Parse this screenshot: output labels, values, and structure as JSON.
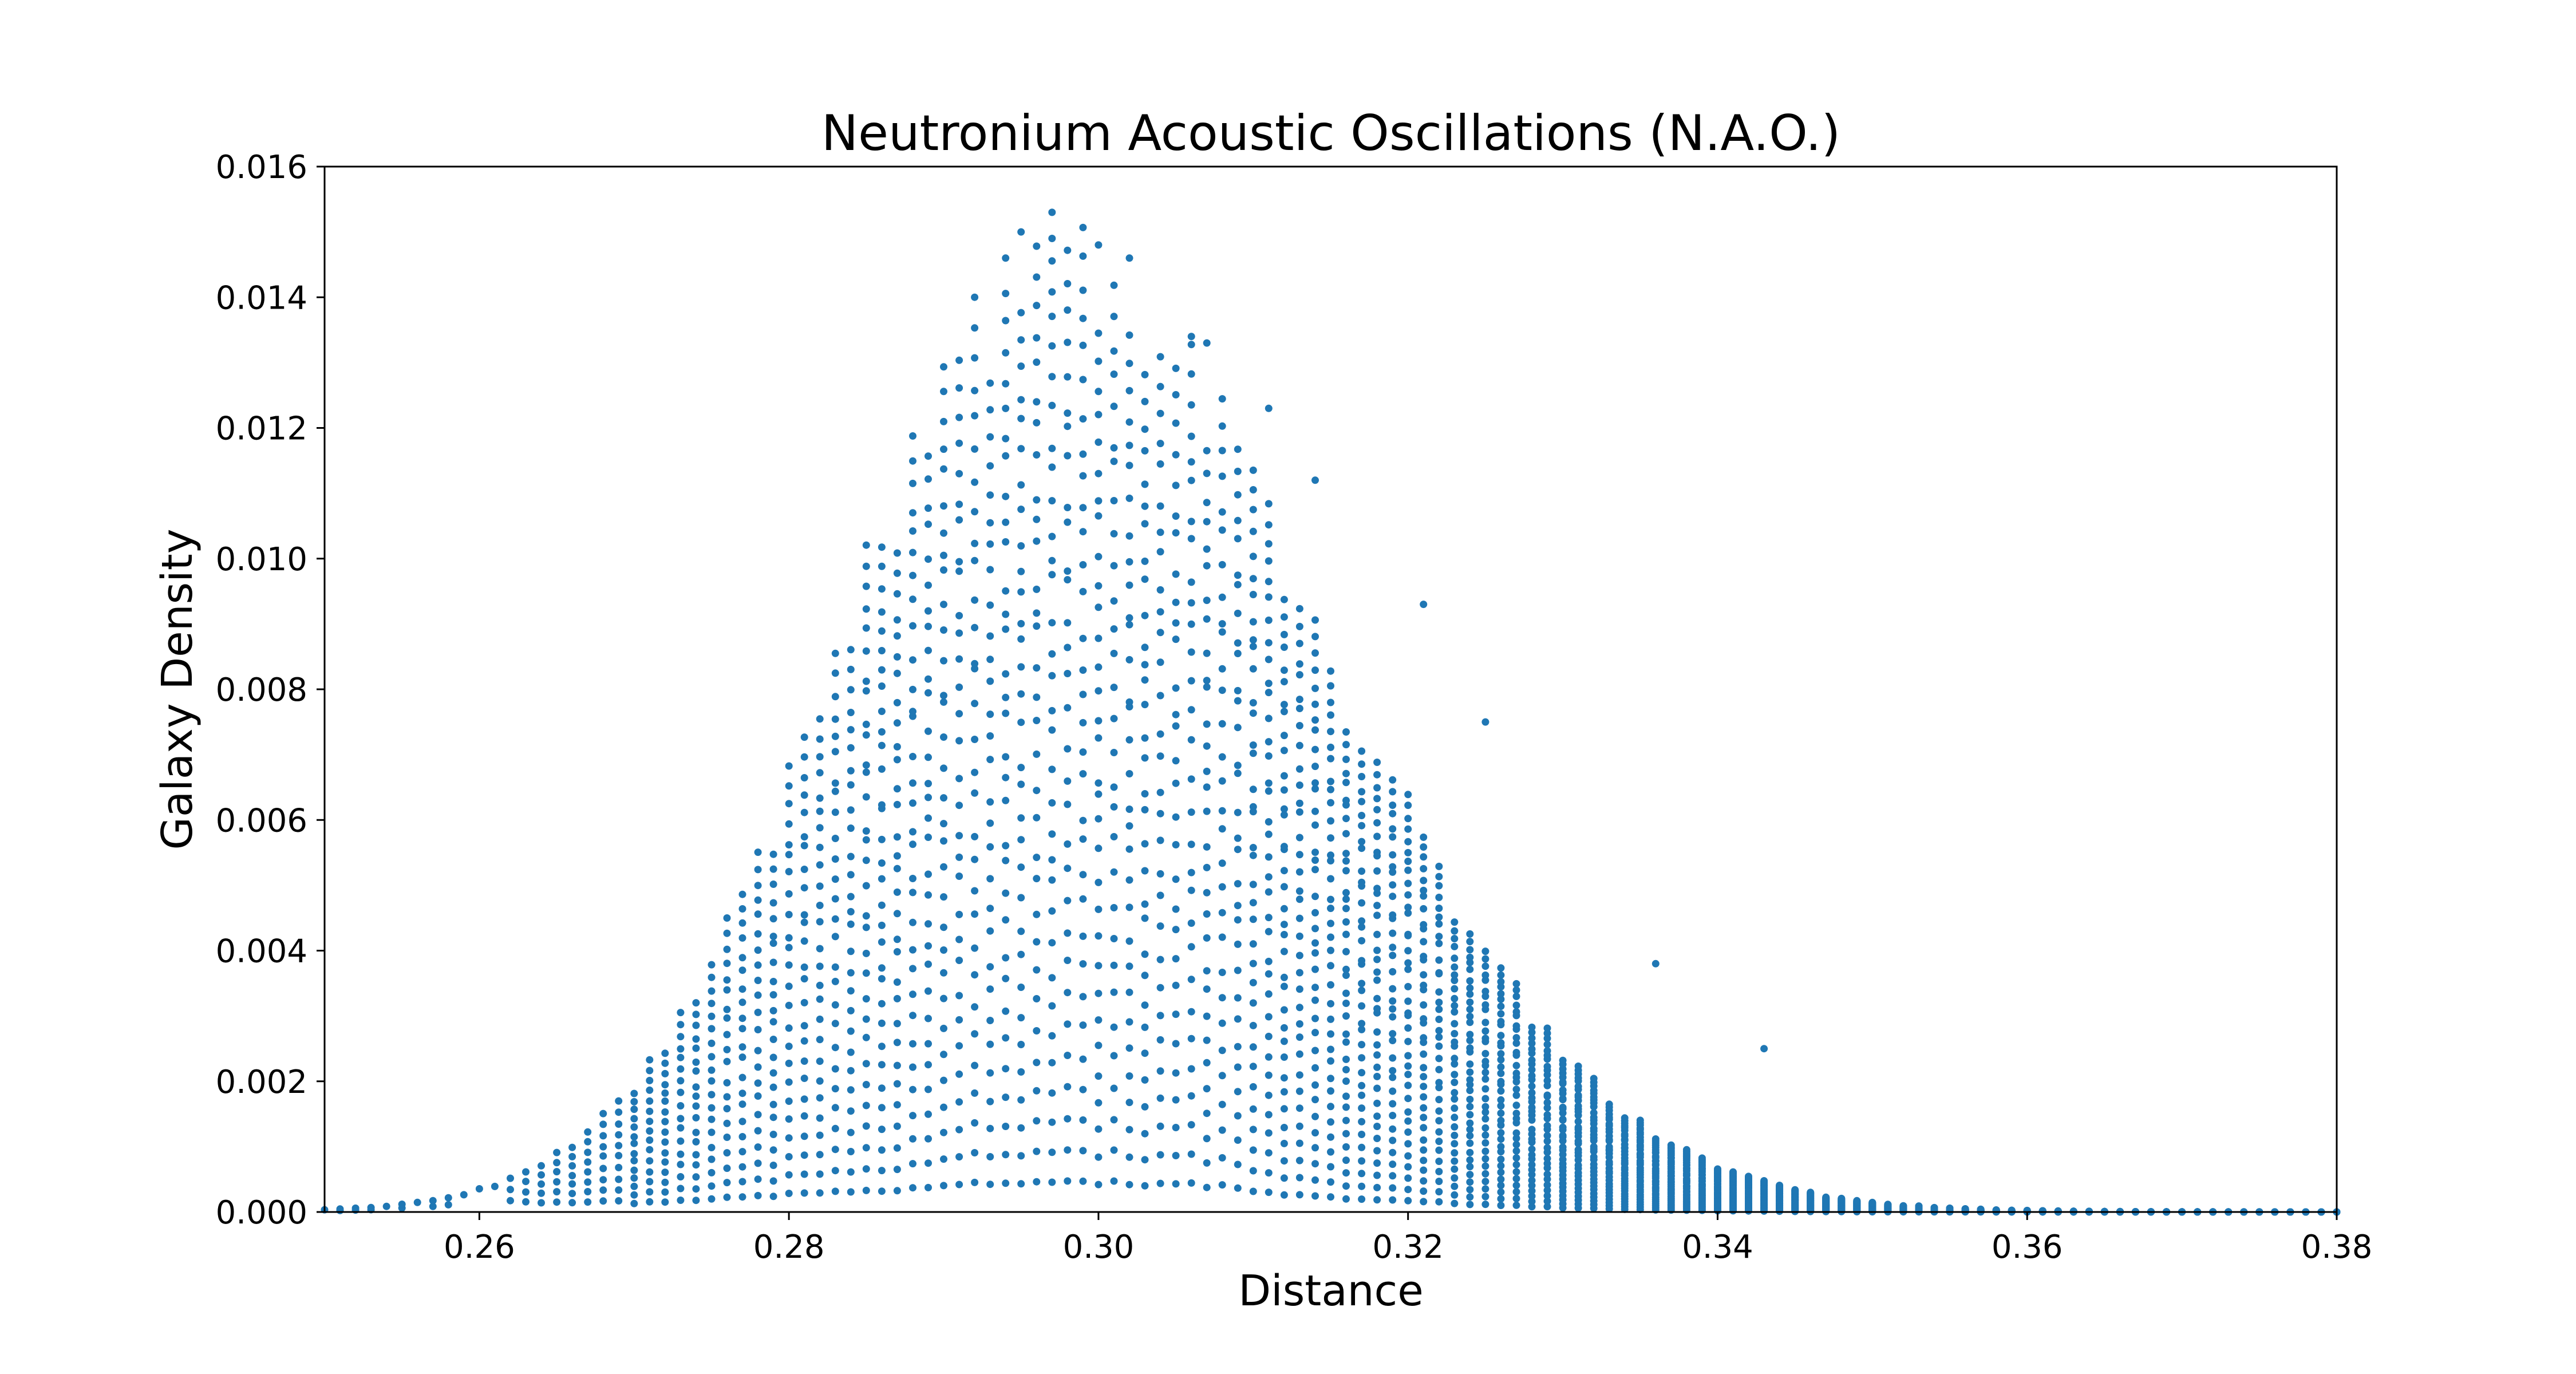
{
  "chart_data": {
    "type": "scatter",
    "title": "Neutronium Acoustic Oscillations (N.A.O.)",
    "xlabel": "Distance",
    "ylabel": "Galaxy Density",
    "xlim": [
      0.25,
      0.38
    ],
    "ylim": [
      0.0,
      0.016
    ],
    "xticks": [
      "0.26",
      "0.28",
      "0.30",
      "0.32",
      "0.34",
      "0.36",
      "0.38"
    ],
    "yticks": [
      "0.000",
      "0.002",
      "0.004",
      "0.006",
      "0.008",
      "0.010",
      "0.012",
      "0.014",
      "0.016"
    ],
    "grid": false,
    "legend": "none",
    "marker_color": "#1f77b4",
    "series": [
      {
        "description_of_structure": "",
        "columns": {
          "x_start": 0.25,
          "x_step": 0.001,
          "x_count": 131
        },
        "envelope": {
          "peak_x": 0.297,
          "max_y": 0.0153
        }
      }
    ],
    "outliers": [
      {
        "x": 0.294,
        "y": 0.0146
      },
      {
        "x": 0.295,
        "y": 0.015
      },
      {
        "x": 0.297,
        "y": 0.0153
      },
      {
        "x": 0.297,
        "y": 0.0149
      },
      {
        "x": 0.3,
        "y": 0.0148
      },
      {
        "x": 0.302,
        "y": 0.0146
      },
      {
        "x": 0.306,
        "y": 0.0134
      },
      {
        "x": 0.307,
        "y": 0.0133
      },
      {
        "x": 0.311,
        "y": 0.0123
      },
      {
        "x": 0.314,
        "y": 0.0112
      },
      {
        "x": 0.321,
        "y": 0.0093
      },
      {
        "x": 0.325,
        "y": 0.0075
      },
      {
        "x": 0.336,
        "y": 0.0038
      },
      {
        "x": 0.343,
        "y": 0.0025
      }
    ]
  }
}
